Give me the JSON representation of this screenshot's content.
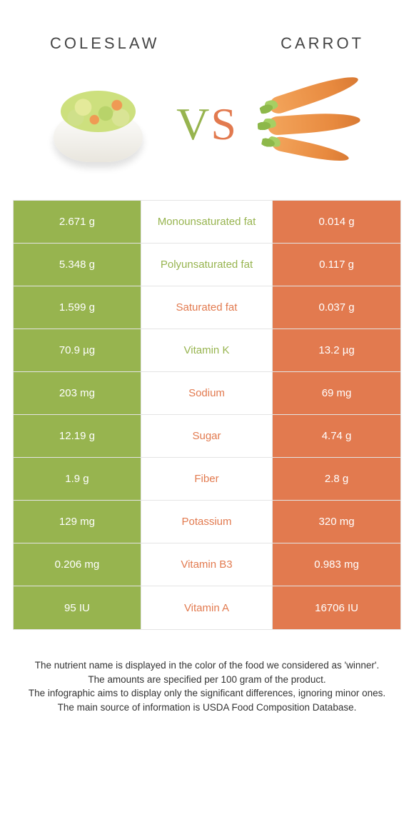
{
  "colors": {
    "coleslaw": "#97b44f",
    "carrot": "#e27a4f",
    "row_border": "#e4e4e4",
    "text": "#333333",
    "white": "#ffffff"
  },
  "header": {
    "left_title": "COLESLAW",
    "right_title": "CARROT"
  },
  "vs": {
    "v": "V",
    "s": "S"
  },
  "rows": [
    {
      "label": "Monounsaturated fat",
      "left": "2.671 g",
      "right": "0.014 g",
      "winner": "left"
    },
    {
      "label": "Polyunsaturated fat",
      "left": "5.348 g",
      "right": "0.117 g",
      "winner": "left"
    },
    {
      "label": "Saturated fat",
      "left": "1.599 g",
      "right": "0.037 g",
      "winner": "right"
    },
    {
      "label": "Vitamin K",
      "left": "70.9 µg",
      "right": "13.2 µg",
      "winner": "left"
    },
    {
      "label": "Sodium",
      "left": "203 mg",
      "right": "69 mg",
      "winner": "right"
    },
    {
      "label": "Sugar",
      "left": "12.19 g",
      "right": "4.74 g",
      "winner": "right"
    },
    {
      "label": "Fiber",
      "left": "1.9 g",
      "right": "2.8 g",
      "winner": "right"
    },
    {
      "label": "Potassium",
      "left": "129 mg",
      "right": "320 mg",
      "winner": "right"
    },
    {
      "label": "Vitamin B3",
      "left": "0.206 mg",
      "right": "0.983 mg",
      "winner": "right"
    },
    {
      "label": "Vitamin A",
      "left": "95 IU",
      "right": "16706 IU",
      "winner": "right"
    }
  ],
  "footer": {
    "line1": "The nutrient name is displayed in the color of the food we considered as 'winner'.",
    "line2": "The amounts are specified per 100 gram of the product.",
    "line3": "The infographic aims to display only the significant differences, ignoring minor ones.",
    "line4": "The main source of information is USDA Food Composition Database."
  }
}
